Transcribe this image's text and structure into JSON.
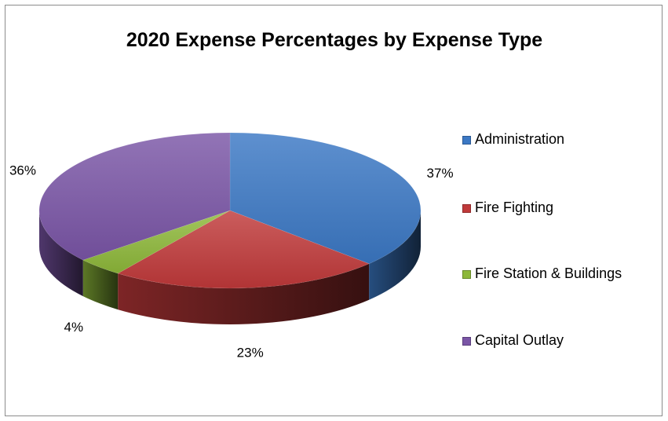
{
  "chart_data": {
    "type": "pie",
    "title": "2020 Expense Percentages by Expense Type",
    "categories": [
      "Administration",
      "Fire Fighting",
      "Fire Station & Buildings",
      "Capital Outlay"
    ],
    "values": [
      37,
      23,
      4,
      36
    ],
    "data_labels": [
      "37%",
      "23%",
      "4%",
      "36%"
    ],
    "colors": [
      "#3b78c4",
      "#c0393a",
      "#8db83a",
      "#7a55a6"
    ],
    "legend_placement": "right",
    "style": "3d"
  }
}
